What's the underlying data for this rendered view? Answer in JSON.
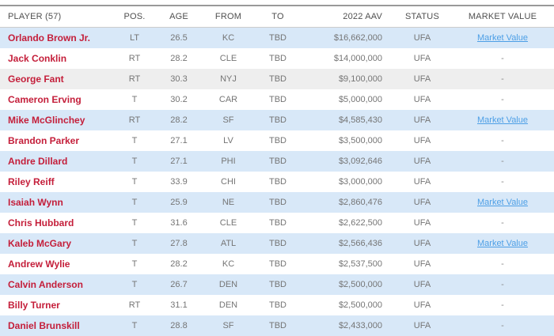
{
  "colors": {
    "row_highlight_blue": "#d8e8f8",
    "row_highlight_gray": "#eeeeee",
    "player_name_red": "#c41e3a",
    "market_link_blue": "#4d9fe6",
    "header_text": "#4f4f4f",
    "cell_text": "#757575",
    "top_border": "#999999"
  },
  "table": {
    "columns": [
      {
        "key": "player",
        "label": "PLAYER (57)",
        "align": "al"
      },
      {
        "key": "pos",
        "label": "POS.",
        "align": "ac"
      },
      {
        "key": "age",
        "label": "AGE",
        "align": "ac"
      },
      {
        "key": "from",
        "label": "FROM",
        "align": "ac"
      },
      {
        "key": "to",
        "label": "TO",
        "align": "ac"
      },
      {
        "key": "aav",
        "label": "2022 AAV",
        "align": "ar"
      },
      {
        "key": "status",
        "label": "STATUS",
        "align": "ac"
      },
      {
        "key": "market",
        "label": "MARKET VALUE",
        "align": "ac"
      }
    ],
    "market_link_label": "Market Value",
    "no_value_placeholder": "-",
    "rows": [
      {
        "player": "Orlando Brown Jr.",
        "pos": "LT",
        "age": "26.5",
        "from": "KC",
        "to": "TBD",
        "aav": "$16,662,000",
        "status": "UFA",
        "market": "Market Value",
        "market_link": true,
        "shade": "blue"
      },
      {
        "player": "Jack Conklin",
        "pos": "RT",
        "age": "28.2",
        "from": "CLE",
        "to": "TBD",
        "aav": "$14,000,000",
        "status": "UFA",
        "market": "-",
        "market_link": false,
        "shade": "white"
      },
      {
        "player": "George Fant",
        "pos": "RT",
        "age": "30.3",
        "from": "NYJ",
        "to": "TBD",
        "aav": "$9,100,000",
        "status": "UFA",
        "market": "-",
        "market_link": false,
        "shade": "gray"
      },
      {
        "player": "Cameron Erving",
        "pos": "T",
        "age": "30.2",
        "from": "CAR",
        "to": "TBD",
        "aav": "$5,000,000",
        "status": "UFA",
        "market": "-",
        "market_link": false,
        "shade": "white"
      },
      {
        "player": "Mike McGlinchey",
        "pos": "RT",
        "age": "28.2",
        "from": "SF",
        "to": "TBD",
        "aav": "$4,585,430",
        "status": "UFA",
        "market": "Market Value",
        "market_link": true,
        "shade": "blue"
      },
      {
        "player": "Brandon Parker",
        "pos": "T",
        "age": "27.1",
        "from": "LV",
        "to": "TBD",
        "aav": "$3,500,000",
        "status": "UFA",
        "market": "-",
        "market_link": false,
        "shade": "white"
      },
      {
        "player": "Andre Dillard",
        "pos": "T",
        "age": "27.1",
        "from": "PHI",
        "to": "TBD",
        "aav": "$3,092,646",
        "status": "UFA",
        "market": "-",
        "market_link": false,
        "shade": "blue"
      },
      {
        "player": "Riley Reiff",
        "pos": "T",
        "age": "33.9",
        "from": "CHI",
        "to": "TBD",
        "aav": "$3,000,000",
        "status": "UFA",
        "market": "-",
        "market_link": false,
        "shade": "white"
      },
      {
        "player": "Isaiah Wynn",
        "pos": "T",
        "age": "25.9",
        "from": "NE",
        "to": "TBD",
        "aav": "$2,860,476",
        "status": "UFA",
        "market": "Market Value",
        "market_link": true,
        "shade": "blue"
      },
      {
        "player": "Chris Hubbard",
        "pos": "T",
        "age": "31.6",
        "from": "CLE",
        "to": "TBD",
        "aav": "$2,622,500",
        "status": "UFA",
        "market": "-",
        "market_link": false,
        "shade": "white"
      },
      {
        "player": "Kaleb McGary",
        "pos": "T",
        "age": "27.8",
        "from": "ATL",
        "to": "TBD",
        "aav": "$2,566,436",
        "status": "UFA",
        "market": "Market Value",
        "market_link": true,
        "shade": "blue"
      },
      {
        "player": "Andrew Wylie",
        "pos": "T",
        "age": "28.2",
        "from": "KC",
        "to": "TBD",
        "aav": "$2,537,500",
        "status": "UFA",
        "market": "-",
        "market_link": false,
        "shade": "white"
      },
      {
        "player": "Calvin Anderson",
        "pos": "T",
        "age": "26.7",
        "from": "DEN",
        "to": "TBD",
        "aav": "$2,500,000",
        "status": "UFA",
        "market": "-",
        "market_link": false,
        "shade": "blue"
      },
      {
        "player": "Billy Turner",
        "pos": "RT",
        "age": "31.1",
        "from": "DEN",
        "to": "TBD",
        "aav": "$2,500,000",
        "status": "UFA",
        "market": "-",
        "market_link": false,
        "shade": "white"
      },
      {
        "player": "Daniel Brunskill",
        "pos": "T",
        "age": "28.8",
        "from": "SF",
        "to": "TBD",
        "aav": "$2,433,000",
        "status": "UFA",
        "market": "-",
        "market_link": false,
        "shade": "blue"
      }
    ]
  }
}
